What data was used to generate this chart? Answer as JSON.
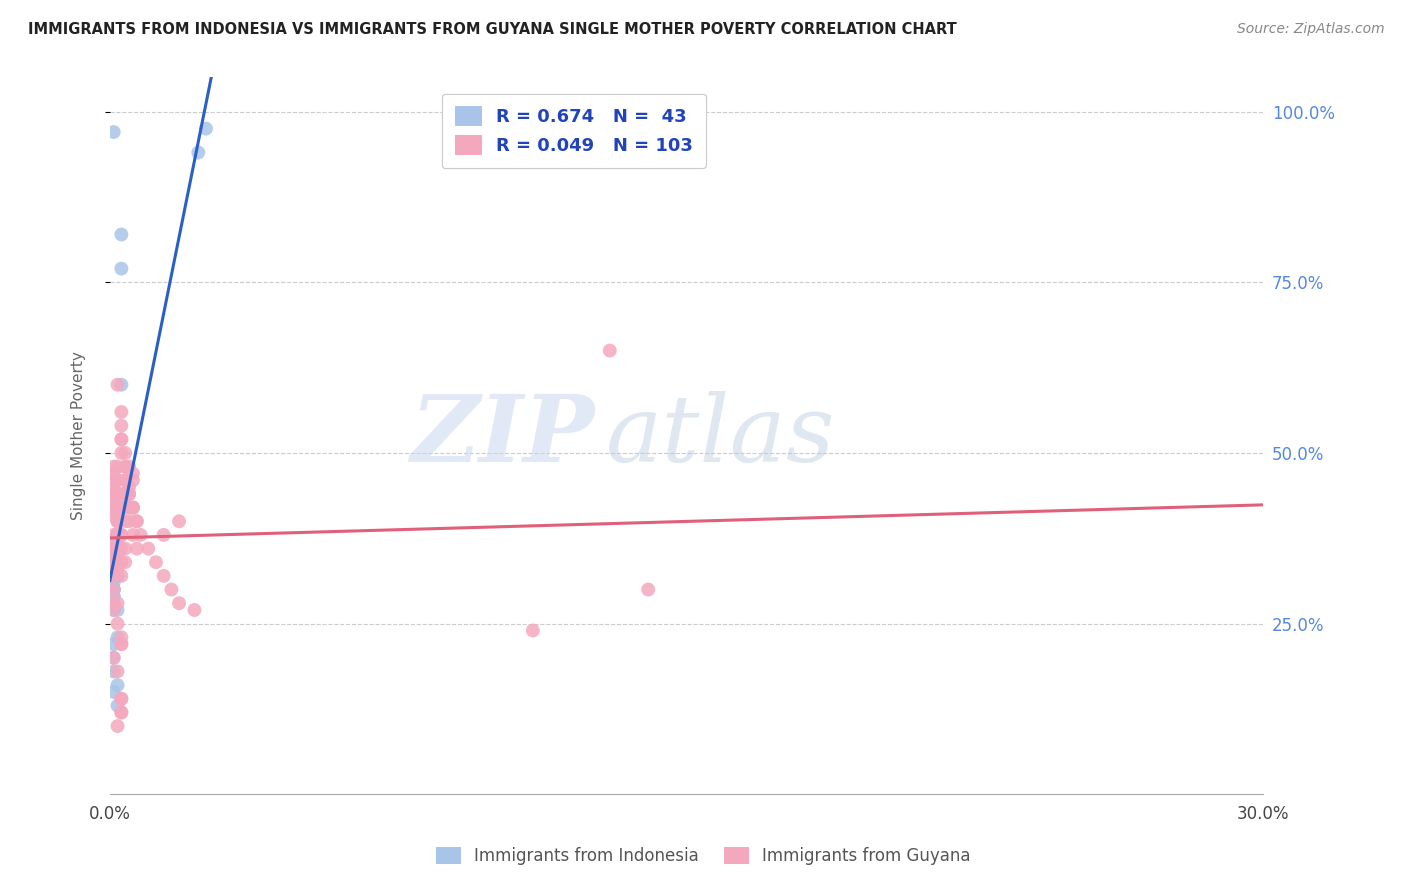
{
  "title": "IMMIGRANTS FROM INDONESIA VS IMMIGRANTS FROM GUYANA SINGLE MOTHER POVERTY CORRELATION CHART",
  "source": "Source: ZipAtlas.com",
  "ylabel": "Single Mother Poverty",
  "R_indonesia": 0.674,
  "N_indonesia": 43,
  "R_guyana": 0.049,
  "N_guyana": 103,
  "color_indonesia": "#a8c4e8",
  "color_guyana": "#f4a8be",
  "trendline_color_indonesia": "#2b5fc7",
  "trendline_color_guyana": "#e0607a",
  "legend_label_indonesia": "Immigrants from Indonesia",
  "legend_label_guyana": "Immigrants from Guyana",
  "watermark_zip": "ZIP",
  "watermark_atlas": "atlas",
  "xlim": [
    0.0,
    0.3
  ],
  "ylim": [
    0.0,
    1.05
  ],
  "xticks": [
    0.0,
    0.3
  ],
  "xticklabels": [
    "0.0%",
    "30.0%"
  ],
  "yticks": [
    0.25,
    0.5,
    0.75,
    1.0
  ],
  "yticklabels_right": [
    "25.0%",
    "50.0%",
    "75.0%",
    "100.0%"
  ],
  "indonesia_x": [
    0.001,
    0.003,
    0.003,
    0.025,
    0.003,
    0.002,
    0.001,
    0.001,
    0.002,
    0.002,
    0.001,
    0.001,
    0.001,
    0.002,
    0.002,
    0.002,
    0.001,
    0.001,
    0.001,
    0.001,
    0.001,
    0.001,
    0.001,
    0.001,
    0.002,
    0.002,
    0.001,
    0.002,
    0.001,
    0.001,
    0.002,
    0.001,
    0.002,
    0.001,
    0.001,
    0.001,
    0.002,
    0.001,
    0.002,
    0.001,
    0.001,
    0.001,
    0.023
  ],
  "indonesia_y": [
    0.97,
    0.82,
    0.77,
    0.975,
    0.6,
    0.38,
    0.36,
    0.34,
    0.38,
    0.38,
    0.42,
    0.35,
    0.36,
    0.37,
    0.38,
    0.36,
    0.35,
    0.33,
    0.32,
    0.33,
    0.32,
    0.31,
    0.3,
    0.3,
    0.35,
    0.32,
    0.29,
    0.27,
    0.22,
    0.3,
    0.32,
    0.2,
    0.23,
    0.18,
    0.27,
    0.29,
    0.16,
    0.15,
    0.13,
    0.37,
    0.36,
    0.36,
    0.94
  ],
  "guyana_x": [
    0.001,
    0.001,
    0.002,
    0.003,
    0.001,
    0.001,
    0.001,
    0.002,
    0.001,
    0.001,
    0.001,
    0.001,
    0.001,
    0.001,
    0.002,
    0.002,
    0.002,
    0.002,
    0.003,
    0.003,
    0.004,
    0.004,
    0.002,
    0.003,
    0.004,
    0.004,
    0.005,
    0.005,
    0.006,
    0.007,
    0.003,
    0.004,
    0.005,
    0.006,
    0.003,
    0.004,
    0.004,
    0.005,
    0.006,
    0.007,
    0.008,
    0.01,
    0.012,
    0.014,
    0.016,
    0.018,
    0.022,
    0.002,
    0.003,
    0.003,
    0.004,
    0.005,
    0.006,
    0.007,
    0.001,
    0.001,
    0.002,
    0.002,
    0.002,
    0.001,
    0.001,
    0.001,
    0.001,
    0.001,
    0.001,
    0.001,
    0.002,
    0.003,
    0.003,
    0.001,
    0.002,
    0.003,
    0.003,
    0.003,
    0.002,
    0.003,
    0.001,
    0.001,
    0.001,
    0.001,
    0.001,
    0.001,
    0.002,
    0.002,
    0.003,
    0.003,
    0.003,
    0.003,
    0.004,
    0.014,
    0.018,
    0.13,
    0.005,
    0.006,
    0.004,
    0.003,
    0.003,
    0.14,
    0.11,
    0.005,
    0.006,
    0.002,
    0.001
  ],
  "guyana_y": [
    0.42,
    0.44,
    0.4,
    0.42,
    0.45,
    0.44,
    0.41,
    0.4,
    0.47,
    0.48,
    0.46,
    0.43,
    0.41,
    0.42,
    0.44,
    0.46,
    0.38,
    0.4,
    0.42,
    0.44,
    0.4,
    0.42,
    0.48,
    0.5,
    0.46,
    0.44,
    0.42,
    0.4,
    0.38,
    0.36,
    0.52,
    0.46,
    0.44,
    0.42,
    0.56,
    0.5,
    0.48,
    0.44,
    0.42,
    0.4,
    0.38,
    0.36,
    0.34,
    0.32,
    0.3,
    0.28,
    0.27,
    0.6,
    0.54,
    0.52,
    0.48,
    0.45,
    0.42,
    0.4,
    0.38,
    0.36,
    0.34,
    0.38,
    0.36,
    0.35,
    0.34,
    0.33,
    0.32,
    0.3,
    0.28,
    0.27,
    0.25,
    0.23,
    0.22,
    0.2,
    0.18,
    0.22,
    0.14,
    0.12,
    0.1,
    0.12,
    0.35,
    0.36,
    0.35,
    0.34,
    0.35,
    0.36,
    0.34,
    0.33,
    0.32,
    0.34,
    0.38,
    0.36,
    0.34,
    0.38,
    0.4,
    0.65,
    0.48,
    0.46,
    0.36,
    0.14,
    0.38,
    0.3,
    0.24,
    0.44,
    0.47,
    0.28,
    0.36
  ]
}
